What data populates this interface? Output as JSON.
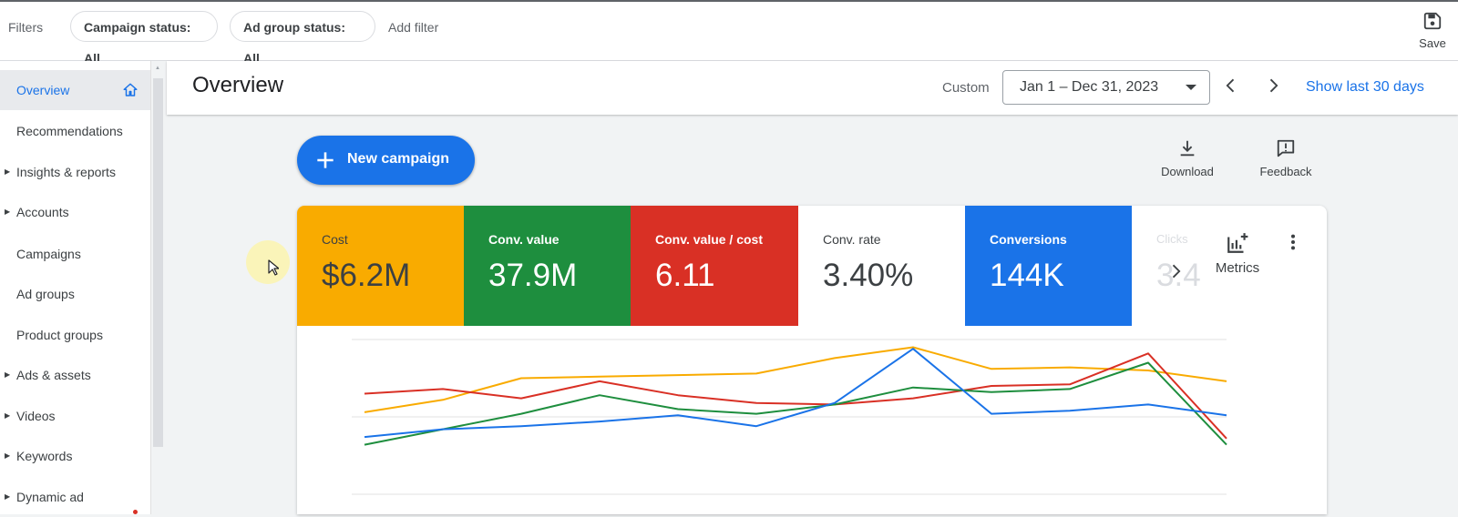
{
  "filterbar": {
    "label": "Filters",
    "chips": [
      "Campaign status: All",
      "Ad group status: All"
    ],
    "add_filter": "Add filter",
    "save_label": "Save"
  },
  "sidebar": {
    "items": [
      {
        "label": "Overview",
        "active": true,
        "expandable": false
      },
      {
        "label": "Recommendations",
        "expandable": false
      },
      {
        "label": "Insights & reports",
        "expandable": true
      },
      {
        "label": "Accounts",
        "expandable": true
      },
      {
        "label": "Campaigns",
        "expandable": false
      },
      {
        "label": "Ad groups",
        "expandable": false
      },
      {
        "label": "Product groups",
        "expandable": false
      },
      {
        "label": "Ads & assets",
        "expandable": true
      },
      {
        "label": "Videos",
        "expandable": true
      },
      {
        "label": "Keywords",
        "expandable": true
      },
      {
        "label": "Dynamic ad",
        "expandable": true
      }
    ]
  },
  "header": {
    "title": "Overview",
    "range_label": "Custom",
    "date_range": "Jan 1 – Dec 31, 2023",
    "show_last": "Show last 30 days"
  },
  "actions": {
    "new_campaign": "New campaign",
    "download": "Download",
    "feedback": "Feedback",
    "metrics": "Metrics"
  },
  "scorecards": [
    {
      "label": "Cost",
      "value": "$6.2M",
      "color": "#f9ab00"
    },
    {
      "label": "Conv. value",
      "value": "37.9M",
      "color": "#1e8e3e"
    },
    {
      "label": "Conv. value / cost",
      "value": "6.11",
      "color": "#d93025"
    },
    {
      "label": "Conv. rate",
      "value": "3.40%",
      "color": "#ffffff"
    },
    {
      "label": "Conversions",
      "value": "144K",
      "color": "#1a73e8"
    },
    {
      "label": "Clicks",
      "value": "3.4",
      "color": "#ffffff"
    }
  ],
  "chart_data": {
    "type": "line",
    "x": [
      1,
      2,
      3,
      4,
      5,
      6,
      7,
      8,
      9,
      10,
      11,
      12
    ],
    "ylim": [
      0,
      100
    ],
    "grid": true,
    "series": [
      {
        "color": "#f9ab00",
        "values": [
          53,
          61,
          75,
          76,
          77,
          78,
          88,
          95,
          81,
          82,
          80,
          73
        ]
      },
      {
        "color": "#d93025",
        "values": [
          65,
          68,
          62,
          73,
          64,
          59,
          58,
          62,
          70,
          71,
          91,
          36
        ]
      },
      {
        "color": "#1e8e3e",
        "values": [
          32,
          42,
          52,
          64,
          55,
          52,
          58,
          69,
          66,
          68,
          85,
          32
        ]
      },
      {
        "color": "#1a73e8",
        "values": [
          37,
          42,
          44,
          47,
          51,
          44,
          59,
          94,
          52,
          54,
          58,
          51
        ]
      }
    ]
  }
}
